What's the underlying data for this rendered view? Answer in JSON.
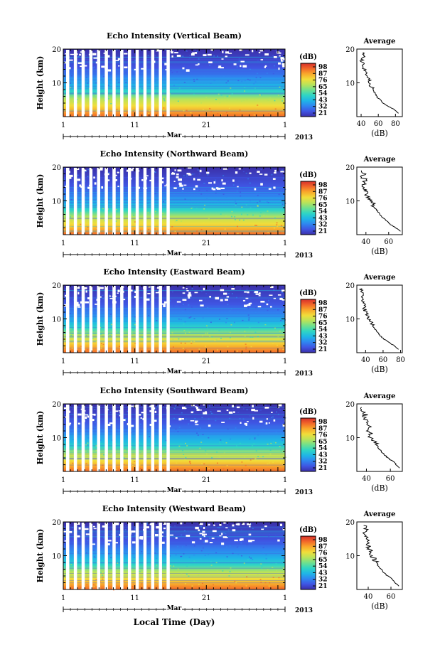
{
  "colors": {
    "colormap": [
      "#3b2fa8",
      "#3f55e3",
      "#2f86f0",
      "#1fb6e6",
      "#2fd5c4",
      "#6fe08e",
      "#b8e35a",
      "#f1dd3a",
      "#f9a92b",
      "#f2682a",
      "#d7302a"
    ],
    "line": "#000000",
    "background": "#ffffff"
  },
  "shared": {
    "ylabel": "Height (km)",
    "yticks": [
      "20",
      "10"
    ],
    "xticks": [
      "1",
      "11",
      "21",
      "1"
    ],
    "month_label": "Mar",
    "year_label": "2013",
    "colorbar_unit": "(dB)",
    "colorbar_ticks": [
      "98",
      "87",
      "76",
      "65",
      "54",
      "43",
      "32",
      "21"
    ],
    "profile_title": "Average",
    "profile_xlabel": "(dB)",
    "xlabel": "Local Time (Day)"
  },
  "chart_data": [
    {
      "type": "heatmap",
      "title": "Echo Intensity (Vertical Beam)",
      "ylim": [
        0,
        20
      ],
      "zlim": [
        21,
        98
      ],
      "profile": {
        "xticks": [
          "40",
          "60",
          "80"
        ],
        "xlim": [
          35,
          88
        ],
        "height_km": [
          1,
          2,
          3,
          4,
          5,
          6,
          7,
          8,
          9,
          10,
          11,
          12,
          13,
          14,
          15,
          16,
          17,
          18,
          19
        ],
        "value_db": [
          83,
          79,
          72,
          66,
          62,
          58,
          56,
          54,
          52,
          50,
          49,
          48,
          46,
          44,
          42,
          41,
          40,
          45,
          42
        ]
      }
    },
    {
      "type": "heatmap",
      "title": "Echo Intensity (Northward Beam)",
      "ylim": [
        0,
        20
      ],
      "zlim": [
        21,
        98
      ],
      "profile": {
        "xticks": [
          "40",
          "60"
        ],
        "xlim": [
          32,
          72
        ],
        "height_km": [
          1,
          2,
          3,
          4,
          5,
          6,
          7,
          8,
          9,
          10,
          11,
          12,
          13,
          14,
          15,
          16,
          17,
          18,
          19
        ],
        "value_db": [
          70,
          66,
          62,
          58,
          55,
          52,
          50,
          48,
          46,
          44,
          42,
          41,
          40,
          39,
          38,
          40,
          37,
          39,
          36
        ]
      }
    },
    {
      "type": "heatmap",
      "title": "Echo Intensity (Eastward Beam)",
      "ylim": [
        0,
        20
      ],
      "zlim": [
        21,
        98
      ],
      "profile": {
        "xticks": [
          "40",
          "60",
          "80"
        ],
        "xlim": [
          30,
          82
        ],
        "height_km": [
          1,
          2,
          3,
          4,
          5,
          6,
          7,
          8,
          9,
          10,
          11,
          12,
          13,
          14,
          15,
          16,
          17,
          18,
          19
        ],
        "value_db": [
          78,
          73,
          67,
          61,
          57,
          54,
          51,
          48,
          46,
          44,
          42,
          40,
          39,
          38,
          37,
          36,
          37,
          35,
          36
        ]
      }
    },
    {
      "type": "heatmap",
      "title": "Echo Intensity (Southward Beam)",
      "ylim": [
        0,
        20
      ],
      "zlim": [
        21,
        98
      ],
      "profile": {
        "xticks": [
          "40",
          "60"
        ],
        "xlim": [
          32,
          70
        ],
        "height_km": [
          1,
          2,
          3,
          4,
          5,
          6,
          7,
          8,
          9,
          10,
          11,
          12,
          13,
          14,
          15,
          16,
          17,
          18,
          19
        ],
        "value_db": [
          68,
          65,
          62,
          58,
          55,
          52,
          50,
          48,
          46,
          44,
          43,
          42,
          44,
          41,
          40,
          38,
          39,
          37,
          36
        ]
      }
    },
    {
      "type": "heatmap",
      "title": "Echo Intensity (Westward Beam)",
      "ylim": [
        0,
        20
      ],
      "zlim": [
        21,
        98
      ],
      "profile": {
        "xticks": [
          "40",
          "60"
        ],
        "xlim": [
          30,
          70
        ],
        "height_km": [
          1,
          2,
          3,
          4,
          5,
          6,
          7,
          8,
          9,
          10,
          11,
          12,
          13,
          14,
          15,
          16,
          17,
          18,
          19
        ],
        "value_db": [
          67,
          64,
          61,
          57,
          54,
          51,
          49,
          47,
          45,
          43,
          42,
          41,
          40,
          42,
          39,
          38,
          37,
          38,
          36
        ]
      }
    }
  ]
}
